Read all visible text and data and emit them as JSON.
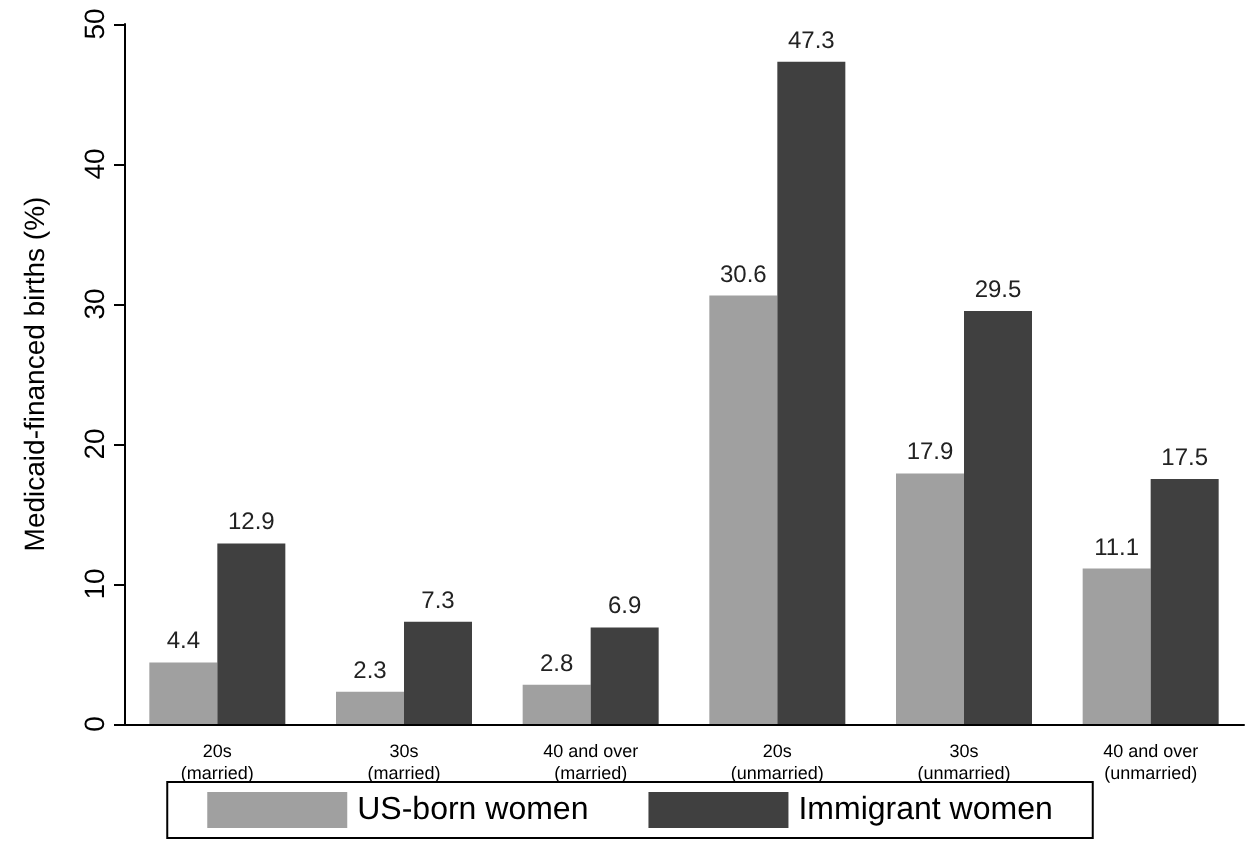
{
  "chart_data": {
    "type": "bar",
    "ylabel": "Medicaid-financed births (%)",
    "categories": [
      "20s\n(married)",
      "30s\n(married)",
      "40 and over\n(married)",
      "20s\n(unmarried)",
      "30s\n(unmarried)",
      "40 and over\n(unmarried)"
    ],
    "series": [
      {
        "name": "US-born women",
        "color": "#a0a0a0",
        "values": [
          4.4,
          2.3,
          2.8,
          30.6,
          17.9,
          11.1
        ]
      },
      {
        "name": "Immigrant women",
        "color": "#404040",
        "values": [
          12.9,
          7.3,
          6.9,
          47.3,
          29.5,
          17.5
        ]
      }
    ],
    "ylim": [
      0,
      50
    ],
    "yticks": [
      0,
      10,
      20,
      30,
      40,
      50
    ],
    "data_labels": true,
    "grid": false,
    "legend": "bottom"
  }
}
